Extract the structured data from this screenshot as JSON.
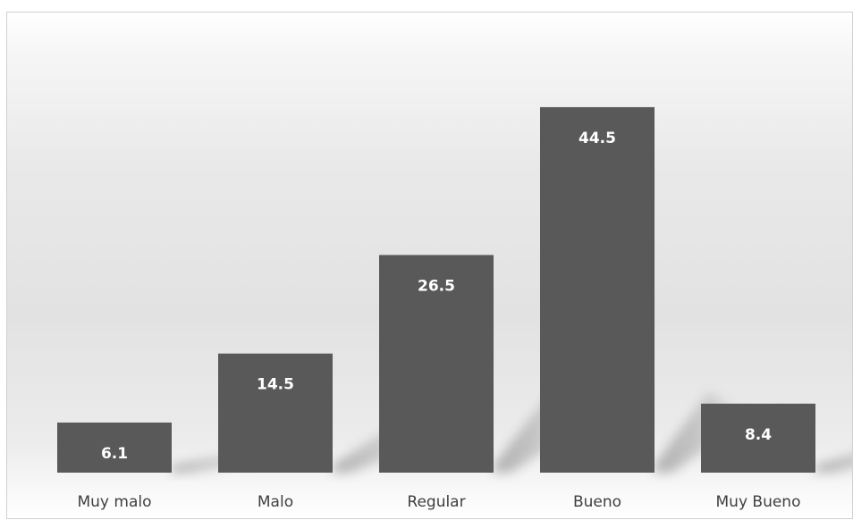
{
  "chart_data": {
    "type": "bar",
    "categories": [
      "Muy malo",
      "Malo",
      "Regular",
      "Bueno",
      "Muy Bueno"
    ],
    "values": [
      6.1,
      14.5,
      26.5,
      44.5,
      8.4
    ],
    "data_labels": [
      "6.1",
      "14.5",
      "26.5",
      "44.5",
      "8.4"
    ],
    "ylim": [
      0,
      52
    ],
    "grid": false,
    "legend": "none",
    "colors": {
      "bar": "#595959",
      "data_label": "#ffffff",
      "category_label": "#404040"
    }
  }
}
